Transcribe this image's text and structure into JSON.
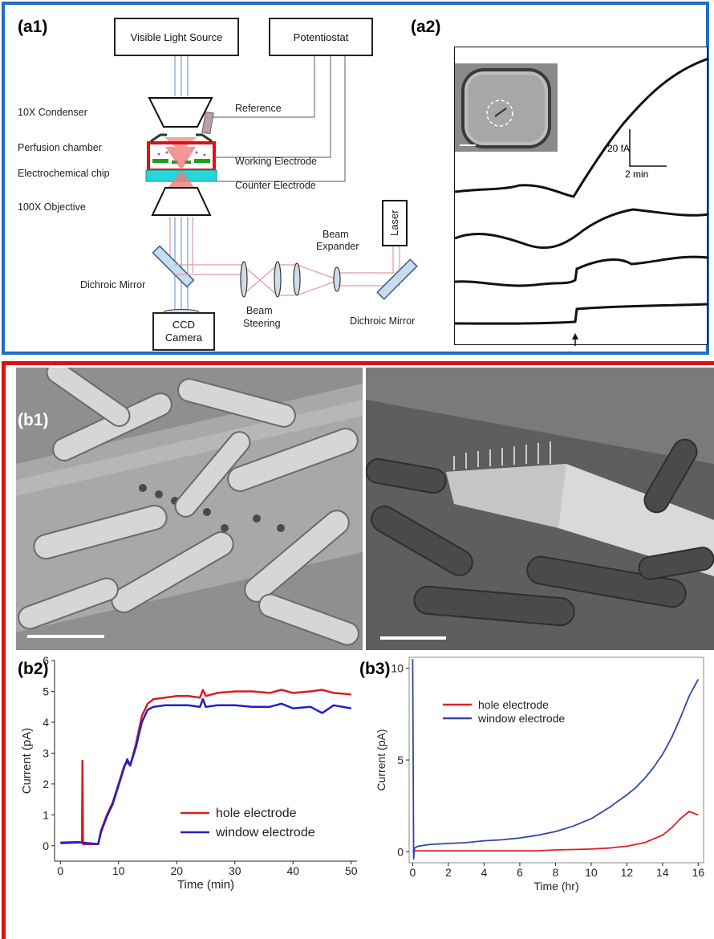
{
  "panels": {
    "a1": "(a1)",
    "a2": "(a2)",
    "b1": "(b1)",
    "b2": "(b2)",
    "b3": "(b3)"
  },
  "diagram": {
    "light_source": "Visible Light Source",
    "potentiostat": "Potentiostat",
    "condenser": "10X Condenser",
    "perfusion": "Perfusion chamber",
    "chip": "Electrochemical chip",
    "objective": "100X  Objective",
    "dichroic_left": "Dichroic Mirror",
    "dichroic_right": "Dichroic Mirror",
    "reference": "Reference",
    "working": "Working Electrode",
    "counter": "Counter Electrode",
    "beam_expander_1": "Beam",
    "beam_expander_2": "Expander",
    "beam_steering_1": "Beam",
    "beam_steering_2": "Steering",
    "laser": "Laser",
    "ccd_1": "CCD",
    "ccd_2": "Camera"
  },
  "a2": {
    "scale_current": "20 fA",
    "scale_time": "2 min"
  },
  "chart_data": [
    {
      "type": "line",
      "panel": "b2",
      "xlabel": "Time (min)",
      "ylabel": "Current (pA)",
      "xlim": [
        -1,
        51
      ],
      "ylim": [
        -0.5,
        6
      ],
      "xticks": [
        0,
        10,
        20,
        30,
        40,
        50
      ],
      "yticks": [
        0,
        1,
        2,
        3,
        4,
        5,
        6
      ],
      "series": [
        {
          "name": "hole electrode",
          "color": "#d62020",
          "x": [
            0,
            3,
            3.7,
            3.8,
            3.9,
            6.5,
            7,
            8,
            9,
            10,
            11,
            11.5,
            12,
            13,
            14,
            15,
            16,
            18,
            20,
            22,
            24,
            24.5,
            25,
            27,
            30,
            33,
            36,
            38,
            40,
            43,
            45,
            47,
            50
          ],
          "y": [
            0.08,
            0.1,
            0.1,
            2.75,
            0.05,
            0.05,
            0.5,
            1.0,
            1.4,
            2.0,
            2.6,
            2.7,
            2.6,
            3.3,
            4.2,
            4.6,
            4.75,
            4.8,
            4.85,
            4.85,
            4.8,
            5.05,
            4.85,
            4.95,
            5.0,
            5.0,
            4.95,
            5.05,
            4.95,
            5.0,
            5.05,
            4.95,
            4.9
          ]
        },
        {
          "name": "window electrode",
          "color": "#2020c8",
          "x": [
            0,
            3,
            3.8,
            6.5,
            7,
            8,
            9,
            10,
            11,
            11.5,
            12,
            13,
            14,
            15,
            16,
            18,
            20,
            22,
            24,
            24.5,
            25,
            27,
            30,
            33,
            36,
            38,
            40,
            43,
            45,
            47,
            50
          ],
          "y": [
            0.1,
            0.12,
            0.1,
            0.05,
            0.45,
            0.95,
            1.35,
            1.95,
            2.55,
            2.8,
            2.6,
            3.2,
            4.0,
            4.4,
            4.5,
            4.55,
            4.55,
            4.55,
            4.5,
            4.75,
            4.5,
            4.55,
            4.55,
            4.5,
            4.5,
            4.6,
            4.45,
            4.5,
            4.3,
            4.55,
            4.45
          ]
        }
      ]
    },
    {
      "type": "line",
      "panel": "b3",
      "xlabel": "Time (hr)",
      "ylabel": "Current (pA)",
      "xlim": [
        -0.2,
        16.3
      ],
      "ylim": [
        -0.6,
        10.6
      ],
      "xticks": [
        0,
        2,
        4,
        6,
        8,
        10,
        12,
        14,
        16
      ],
      "yticks": [
        0,
        5,
        10
      ],
      "series": [
        {
          "name": "hole electrode",
          "color": "#e02020",
          "x": [
            0,
            1,
            2,
            4,
            6,
            7,
            8,
            9,
            10,
            11,
            12,
            13,
            14,
            14.5,
            15,
            15.5,
            16
          ],
          "y": [
            0.05,
            0.05,
            0.05,
            0.05,
            0.05,
            0.05,
            0.1,
            0.12,
            0.15,
            0.2,
            0.3,
            0.5,
            0.9,
            1.3,
            1.8,
            2.2,
            2.0
          ]
        },
        {
          "name": "window electrode",
          "color": "#3344aa",
          "x": [
            0,
            0.05,
            0.1,
            0.3,
            1,
            2,
            3,
            4,
            5,
            6,
            7,
            8,
            9,
            10,
            11,
            12,
            12.5,
            13,
            13.5,
            14,
            14.5,
            15,
            15.5,
            16
          ],
          "y": [
            10.5,
            -0.4,
            0.2,
            0.3,
            0.4,
            0.45,
            0.5,
            0.6,
            0.65,
            0.75,
            0.9,
            1.1,
            1.4,
            1.8,
            2.4,
            3.1,
            3.5,
            4.0,
            4.6,
            5.3,
            6.2,
            7.3,
            8.5,
            9.4
          ]
        }
      ]
    }
  ]
}
